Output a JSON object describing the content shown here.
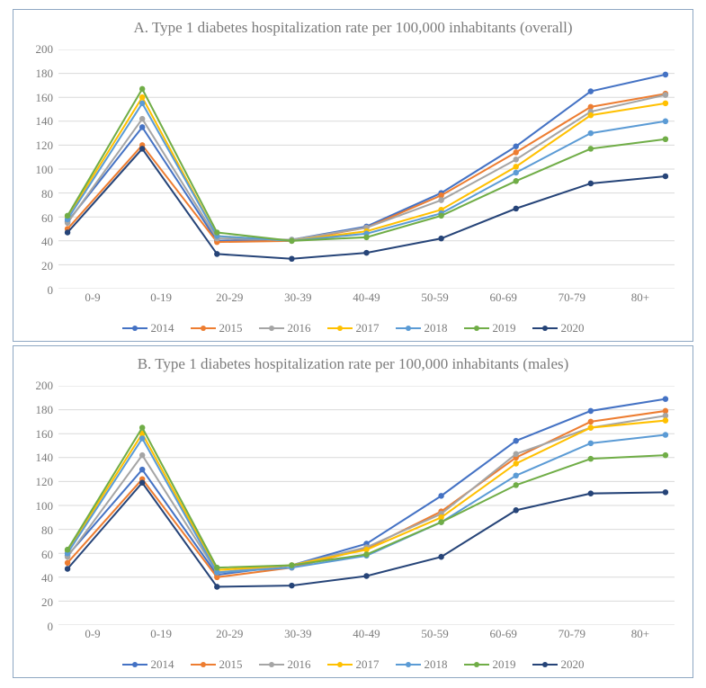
{
  "categories": [
    "0-9",
    "0-19",
    "20-29",
    "30-39",
    "40-49",
    "50-59",
    "60-69",
    "70-79",
    "80+"
  ],
  "legend_labels": [
    "2014",
    "2015",
    "2016",
    "2017",
    "2018",
    "2019",
    "2020"
  ],
  "series_colors": {
    "2014": "#4472c4",
    "2015": "#ed7d31",
    "2016": "#a5a5a5",
    "2017": "#ffc000",
    "2018": "#5b9bd5",
    "2019": "#70ad47",
    "2020": "#264478"
  },
  "marker_style": "circle",
  "line_width": 2,
  "grid_color": "#d9d9d9",
  "background_color": "#ffffff",
  "border_color": "#8ea7c2",
  "text_color": "#7b7b7b",
  "title_fontsize": 17,
  "axis_fontsize": 13,
  "font_family": "Palatino Linotype",
  "charts": [
    {
      "id": "overall",
      "title": "A. Type 1 diabetes hospitalization rate per 100,000 inhabitants (overall)",
      "ylim": [
        0,
        200
      ],
      "ytick_step": 20,
      "series": {
        "2014": [
          56,
          135,
          40,
          41,
          52,
          80,
          119,
          165,
          179
        ],
        "2015": [
          50,
          120,
          39,
          40,
          51,
          78,
          114,
          152,
          163
        ],
        "2016": [
          55,
          142,
          42,
          41,
          51,
          74,
          108,
          148,
          162
        ],
        "2017": [
          60,
          160,
          44,
          40,
          48,
          66,
          102,
          145,
          155
        ],
        "2018": [
          58,
          155,
          44,
          40,
          46,
          63,
          97,
          130,
          140
        ],
        "2019": [
          61,
          167,
          47,
          40,
          43,
          61,
          90,
          117,
          125
        ],
        "2020": [
          47,
          117,
          29,
          25,
          30,
          42,
          67,
          88,
          94
        ]
      }
    },
    {
      "id": "males",
      "title": "B. Type 1 diabetes hospitalization rate per 100,000 inhabitants (males)",
      "ylim": [
        0,
        200
      ],
      "ytick_step": 20,
      "series": {
        "2014": [
          58,
          130,
          42,
          50,
          68,
          108,
          154,
          179,
          189
        ],
        "2015": [
          52,
          122,
          40,
          48,
          64,
          95,
          140,
          170,
          179
        ],
        "2016": [
          57,
          142,
          44,
          50,
          65,
          93,
          143,
          165,
          175
        ],
        "2017": [
          62,
          160,
          46,
          50,
          63,
          90,
          135,
          165,
          171
        ],
        "2018": [
          60,
          156,
          44,
          48,
          58,
          86,
          125,
          152,
          159
        ],
        "2019": [
          63,
          165,
          48,
          50,
          59,
          86,
          117,
          139,
          142
        ],
        "2020": [
          47,
          119,
          32,
          33,
          41,
          57,
          96,
          110,
          111
        ]
      }
    }
  ]
}
